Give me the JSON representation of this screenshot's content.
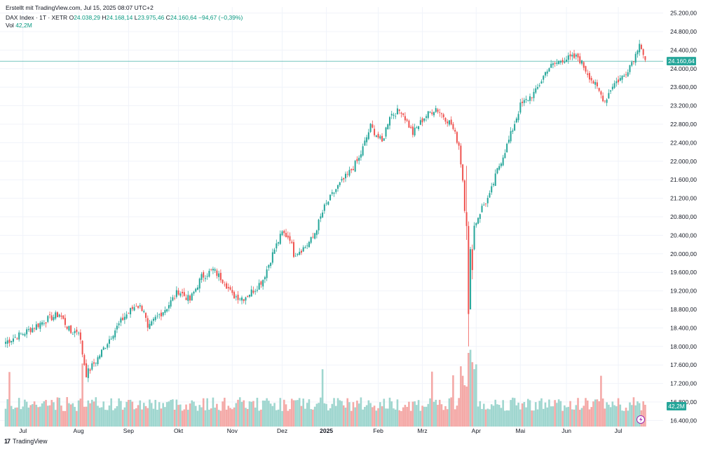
{
  "header": {
    "created": "Erstellt mit TradingView.com, Jul 15, 2025 08:07 UTC+2"
  },
  "legend": {
    "symbol": "DAX Index · 1T · XETR",
    "open_label": "O",
    "open": "24.038,29",
    "high_label": "H",
    "high": "24.168,14",
    "low_label": "L",
    "low": "23.975,46",
    "close_label": "C",
    "close": "24.160,64",
    "change": "−94,67 (−0,39%)",
    "vol_label": "Vol",
    "vol": "42,2M"
  },
  "footer": {
    "brand": "TradingView",
    "logo": "17"
  },
  "colors": {
    "up": "#26a69a",
    "down": "#ef5350",
    "up_vol": "#9fd6cf",
    "down_vol": "#f4a9a7",
    "price_line": "#26a69a",
    "axis_text": "#131722",
    "lightning": "#9c27b0"
  },
  "icons": [
    "lightning-icon",
    "tradingview-logo-icon"
  ],
  "chart_data": {
    "type": "candlestick",
    "title": "",
    "yaxis_ticks": [
      "25.200,00",
      "24.800,00",
      "24.400,00",
      "24.000,00",
      "23.600,00",
      "23.200,00",
      "22.800,00",
      "22.400,00",
      "22.000,00",
      "21.600,00",
      "21.200,00",
      "20.800,00",
      "20.400,00",
      "20.000,00",
      "19.600,00",
      "19.200,00",
      "18.800,00",
      "18.400,00",
      "18.000,00",
      "17.600,00",
      "17.200,00",
      "16.800,00",
      "16.400,00"
    ],
    "yaxis_range": [
      16270,
      25330
    ],
    "xaxis_ticks": [
      "Jul",
      "Aug",
      "Sep",
      "Okt",
      "Nov",
      "Dez",
      "2025",
      "Feb",
      "Mrz",
      "Apr",
      "Mai",
      "Jun",
      "Jul"
    ],
    "last_price_label": "24.160,64",
    "last_price": 24160.64,
    "volume_label": "42,2M",
    "path_points": [
      [
        0,
        18100
      ],
      [
        10,
        18300
      ],
      [
        20,
        18550
      ],
      [
        28,
        18700
      ],
      [
        34,
        18300
      ],
      [
        38,
        18350
      ],
      [
        40,
        17850
      ],
      [
        42,
        17400
      ],
      [
        48,
        17750
      ],
      [
        56,
        18300
      ],
      [
        62,
        18650
      ],
      [
        68,
        18900
      ],
      [
        72,
        18800
      ],
      [
        74,
        18350
      ],
      [
        78,
        18600
      ],
      [
        84,
        18850
      ],
      [
        90,
        19200
      ],
      [
        96,
        19000
      ],
      [
        102,
        19500
      ],
      [
        108,
        19650
      ],
      [
        114,
        19400
      ],
      [
        118,
        19100
      ],
      [
        124,
        19050
      ],
      [
        130,
        19250
      ],
      [
        134,
        19450
      ],
      [
        140,
        20100
      ],
      [
        144,
        20450
      ],
      [
        148,
        20350
      ],
      [
        150,
        20000
      ],
      [
        156,
        20150
      ],
      [
        160,
        20350
      ],
      [
        166,
        21000
      ],
      [
        172,
        21400
      ],
      [
        178,
        21700
      ],
      [
        184,
        22050
      ],
      [
        190,
        22750
      ],
      [
        196,
        22400
      ],
      [
        200,
        23000
      ],
      [
        206,
        23100
      ],
      [
        212,
        22600
      ],
      [
        218,
        22950
      ],
      [
        224,
        23150
      ],
      [
        232,
        22800
      ],
      [
        236,
        22350
      ],
      [
        238,
        21600
      ],
      [
        240,
        20400
      ],
      [
        241,
        18700
      ],
      [
        242,
        19700
      ],
      [
        244,
        20600
      ],
      [
        248,
        21000
      ],
      [
        252,
        21250
      ],
      [
        256,
        21800
      ],
      [
        262,
        22450
      ],
      [
        268,
        23200
      ],
      [
        276,
        23500
      ],
      [
        282,
        24000
      ],
      [
        290,
        24200
      ],
      [
        298,
        24250
      ],
      [
        306,
        23700
      ],
      [
        312,
        23300
      ],
      [
        316,
        23650
      ],
      [
        322,
        23850
      ],
      [
        328,
        24300
      ],
      [
        330,
        24600
      ],
      [
        333,
        24160
      ]
    ],
    "spike_candles": [
      [
        240,
        20900,
        20600,
        21900,
        20300
      ],
      [
        241,
        20600,
        18700,
        20700,
        18000
      ],
      [
        242,
        18800,
        20100,
        20150,
        18800
      ],
      [
        243,
        20100,
        19650,
        20200,
        19450
      ]
    ]
  }
}
